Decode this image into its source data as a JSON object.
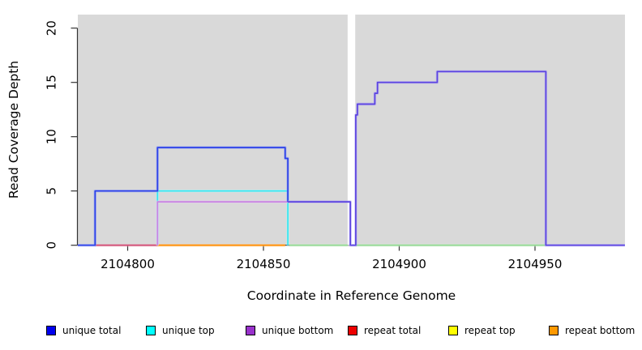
{
  "chart_data": {
    "type": "line",
    "subtype": "step-coverage",
    "title": "",
    "xlabel": "Coordinate in Reference Genome",
    "ylabel": "Read Coverage Depth",
    "x_ticks": [
      2104800,
      2104850,
      2104900,
      2104950
    ],
    "y_ticks": [
      0,
      5,
      10,
      15,
      20
    ],
    "xlim": [
      2104781.6,
      2104983.1
    ],
    "ylim": [
      0,
      21.2
    ],
    "grid": false,
    "plot_bg": "#d9d9d9",
    "axis_color": "#333333",
    "gap_region": {
      "x_start": 2104881,
      "x_end": 2104883.8,
      "color": "#ffffff"
    },
    "series": [
      {
        "name": "baseline-green",
        "core": "#90d690",
        "halo": "#cdeccd",
        "paths": [
          [
            [
              2104859.5,
              0
            ],
            [
              2104881,
              0
            ]
          ],
          [
            [
              2104884,
              0
            ],
            [
              2104953.8,
              0
            ]
          ]
        ]
      },
      {
        "name": "repeat-total-baseline",
        "core": "#cf4a72",
        "halo": "#e6a8ba",
        "paths": [
          [
            [
              2104788,
              0
            ],
            [
              2104811,
              0
            ]
          ]
        ]
      },
      {
        "name": "repeat-bottom-baseline",
        "core": "#ff8c00",
        "halo": "#ffc67f",
        "paths": [
          [
            [
              2104811,
              0
            ],
            [
              2104858,
              0
            ]
          ]
        ]
      },
      {
        "name": "unique-top",
        "core": "#35e6f0",
        "halo": "#b0f7fa",
        "paths": [
          [
            [
              2104811,
              0
            ],
            [
              2104811,
              5
            ],
            [
              2104859,
              5
            ],
            [
              2104859,
              0
            ]
          ]
        ]
      },
      {
        "name": "unique-bottom",
        "core": "#c983e2",
        "halo": "#e6c8f2",
        "paths": [
          [
            [
              2104811,
              0
            ],
            [
              2104811,
              4
            ],
            [
              2104859,
              4
            ]
          ]
        ]
      },
      {
        "name": "unique-total",
        "core": "#2c41e8",
        "halo": "#8a99f4",
        "paths": [
          [
            [
              2104781.6,
              0
            ],
            [
              2104788,
              0
            ],
            [
              2104788,
              5
            ],
            [
              2104811,
              5
            ],
            [
              2104811,
              9
            ],
            [
              2104858,
              9
            ],
            [
              2104858,
              8
            ],
            [
              2104859,
              8
            ],
            [
              2104859,
              4
            ]
          ]
        ]
      },
      {
        "name": "unique-total-bottom-overlap",
        "core": "#5a43e0",
        "halo": "#ab9ef4",
        "paths": [
          [
            [
              2104859,
              4
            ],
            [
              2104882,
              4
            ],
            [
              2104882,
              0
            ],
            [
              2104884,
              0
            ],
            [
              2104884,
              12
            ],
            [
              2104884.6,
              12
            ],
            [
              2104884.6,
              13
            ],
            [
              2104891,
              13
            ],
            [
              2104891,
              14
            ],
            [
              2104892,
              14
            ],
            [
              2104892,
              15
            ],
            [
              2104914,
              15
            ],
            [
              2104914,
              16
            ],
            [
              2104954,
              16
            ],
            [
              2104954,
              0
            ],
            [
              2104983.1,
              0
            ]
          ]
        ]
      }
    ],
    "legend": {
      "position": "bottom",
      "items": [
        {
          "label": "unique total",
          "color": "#0000ee"
        },
        {
          "label": "unique top",
          "color": "#00ffff"
        },
        {
          "label": "unique bottom",
          "color": "#9932cc"
        },
        {
          "label": "repeat total",
          "color": "#ee0000"
        },
        {
          "label": "repeat top",
          "color": "#ffff00"
        },
        {
          "label": "repeat bottom",
          "color": "#ff9900"
        }
      ]
    }
  }
}
